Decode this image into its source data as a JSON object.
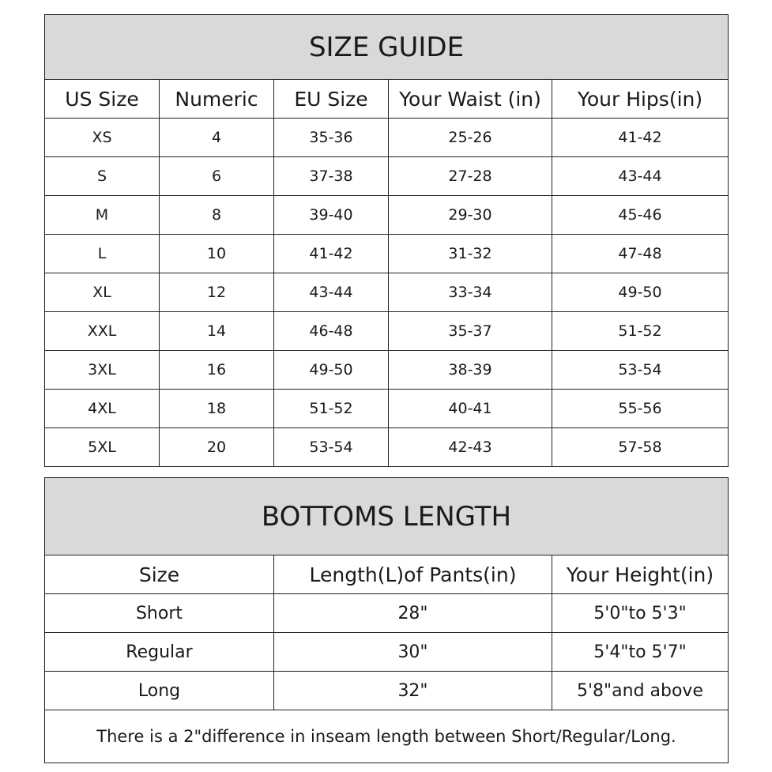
{
  "size_guide": {
    "title": "SIZE GUIDE",
    "headers": [
      "US Size",
      "Numeric",
      "EU Size",
      "Your Waist (in)",
      "Your Hips(in)"
    ],
    "rows": [
      [
        "XS",
        "4",
        "35-36",
        "25-26",
        "41-42"
      ],
      [
        "S",
        "6",
        "37-38",
        "27-28",
        "43-44"
      ],
      [
        "M",
        "8",
        "39-40",
        "29-30",
        "45-46"
      ],
      [
        "L",
        "10",
        "41-42",
        "31-32",
        "47-48"
      ],
      [
        "XL",
        "12",
        "43-44",
        "33-34",
        "49-50"
      ],
      [
        "XXL",
        "14",
        "46-48",
        "35-37",
        "51-52"
      ],
      [
        "3XL",
        "16",
        "49-50",
        "38-39",
        "53-54"
      ],
      [
        "4XL",
        "18",
        "51-52",
        "40-41",
        "55-56"
      ],
      [
        "5XL",
        "20",
        "53-54",
        "42-43",
        "57-58"
      ]
    ]
  },
  "bottoms_length": {
    "title": "BOTTOMS LENGTH",
    "headers": [
      "Size",
      "Length(L)of Pants(in)",
      "Your Height(in)"
    ],
    "rows": [
      [
        "Short",
        "28\"",
        "5'0\"to 5'3\""
      ],
      [
        "Regular",
        "30\"",
        "5'4\"to 5'7\""
      ],
      [
        "Long",
        "32\"",
        "5'8\"and above"
      ]
    ],
    "note": "There is a 2\"difference in inseam length between Short/Regular/Long."
  },
  "colors": {
    "header_bg": "#d9d9d9",
    "border": "#222222"
  }
}
